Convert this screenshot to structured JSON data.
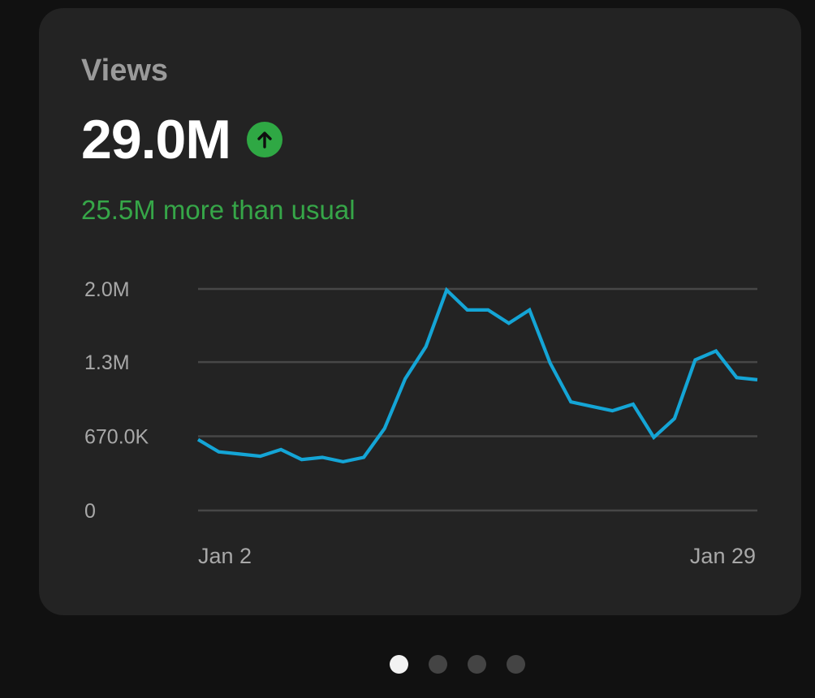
{
  "card": {
    "title": "Views",
    "value": "29.0M",
    "trend_icon": "arrow-up-icon",
    "trend_color": "#2fa844",
    "comparison": "25.5M more than usual"
  },
  "chart_data": {
    "type": "line",
    "title": "",
    "xlabel": "",
    "ylabel": "",
    "x": [
      "Jan 2",
      "Jan 3",
      "Jan 4",
      "Jan 5",
      "Jan 6",
      "Jan 7",
      "Jan 8",
      "Jan 9",
      "Jan 10",
      "Jan 11",
      "Jan 12",
      "Jan 13",
      "Jan 14",
      "Jan 15",
      "Jan 16",
      "Jan 17",
      "Jan 18",
      "Jan 19",
      "Jan 20",
      "Jan 21",
      "Jan 22",
      "Jan 23",
      "Jan 24",
      "Jan 25",
      "Jan 26",
      "Jan 27",
      "Jan 28",
      "Jan 29"
    ],
    "x_tick_labels": [
      "Jan 2",
      "Jan 29"
    ],
    "y_tick_values": [
      0,
      670000,
      1340000,
      2000000
    ],
    "y_tick_labels": [
      "0",
      "670.0K",
      "1.3M",
      "2.0M"
    ],
    "ylim": [
      0,
      2000000
    ],
    "grid": true,
    "color": "#14a5d6",
    "series": [
      {
        "values": [
          640000,
          530000,
          510000,
          490000,
          550000,
          460000,
          480000,
          440000,
          480000,
          740000,
          1190000,
          1480000,
          1990000,
          1810000,
          1810000,
          1690000,
          1810000,
          1330000,
          980000,
          940000,
          900000,
          960000,
          660000,
          830000,
          1360000,
          1440000,
          1200000,
          1180000
        ]
      }
    ]
  },
  "pager": {
    "pages": 4,
    "active_index": 0
  }
}
